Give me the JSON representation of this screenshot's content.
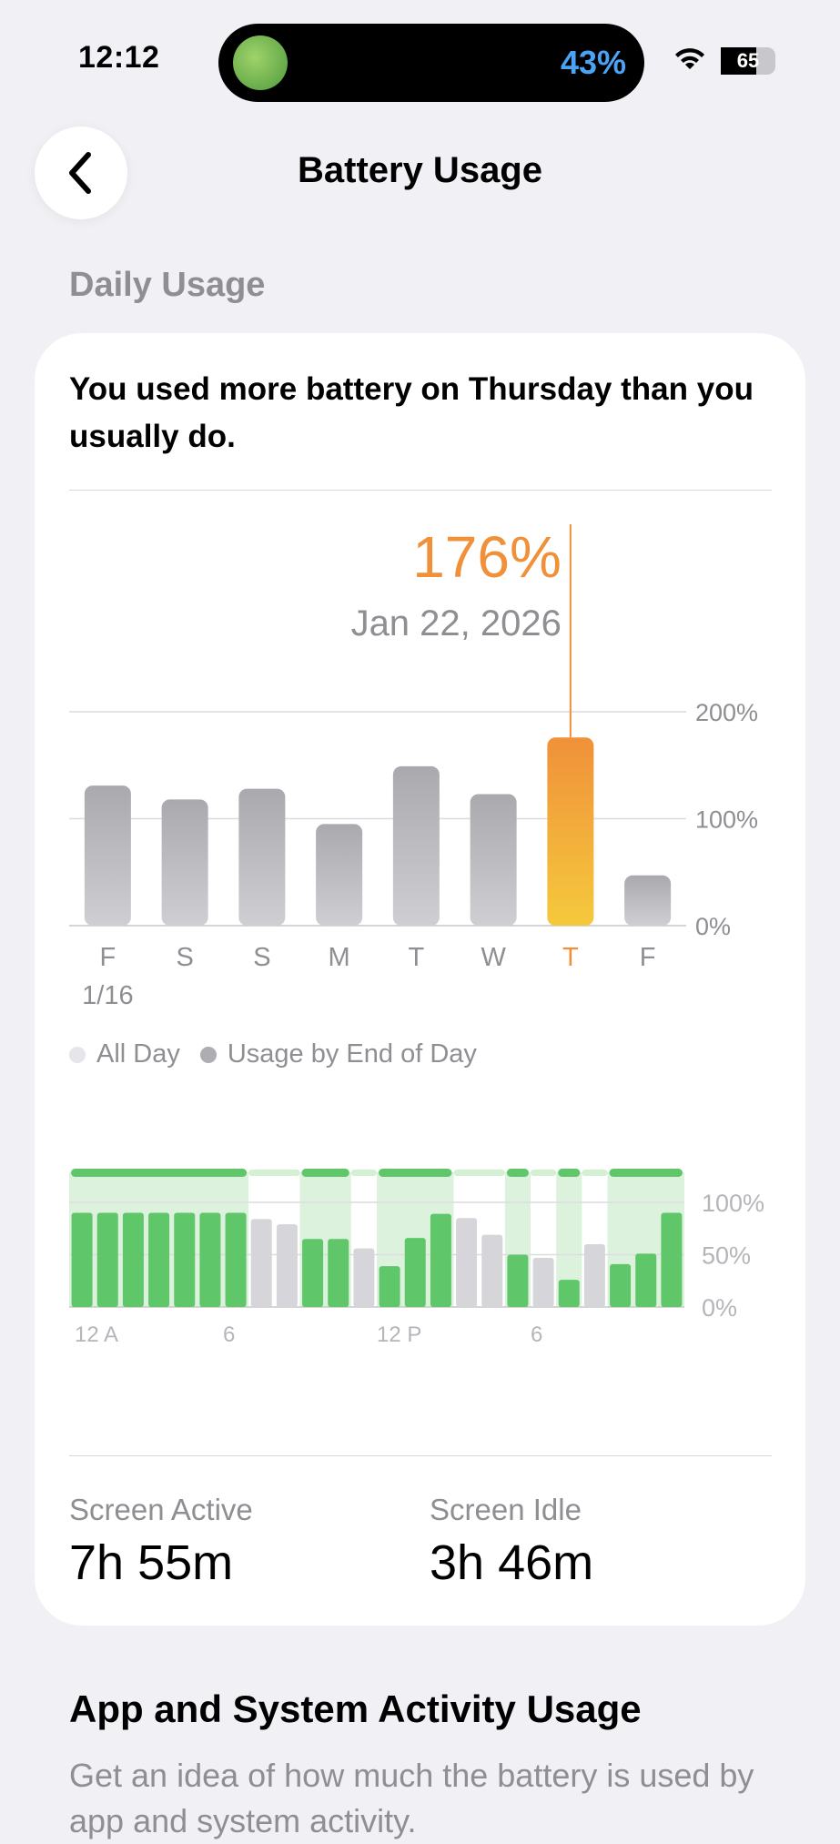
{
  "status": {
    "time": "12:12",
    "island_percent": "43%",
    "battery_level": "65"
  },
  "nav": {
    "title": "Battery Usage"
  },
  "daily": {
    "section_title": "Daily Usage",
    "headline": "You used more battery on Thursday than you usually do.",
    "selected_value": "176%",
    "selected_date": "Jan 22, 2026",
    "legend": {
      "all_day": "All Day",
      "end_of_day": "Usage by End of Day"
    }
  },
  "chart_data": [
    {
      "type": "bar",
      "categories": [
        "F",
        "S",
        "S",
        "M",
        "T",
        "W",
        "T",
        "F"
      ],
      "first_date_label": "1/16",
      "values": [
        131,
        118,
        128,
        95,
        149,
        123,
        176,
        47
      ],
      "highlight_index": 6,
      "yticks": [
        "0%",
        "100%",
        "200%"
      ],
      "ylim": [
        0,
        200
      ],
      "colors": {
        "bar": "#b3b3b8",
        "highlight_top": "#f0913a",
        "highlight_bottom": "#f5c93c"
      }
    },
    {
      "type": "bar",
      "xticks": [
        "12 A",
        "6",
        "12 P",
        "6"
      ],
      "yticks": [
        "0%",
        "50%",
        "100%"
      ],
      "ylim": [
        0,
        100
      ],
      "levels": [
        90,
        90,
        90,
        90,
        90,
        90,
        90,
        84,
        79,
        65,
        65,
        56,
        39,
        66,
        89,
        85,
        69,
        50,
        47,
        26,
        60,
        41,
        51,
        90
      ],
      "charging": [
        true,
        true,
        true,
        true,
        true,
        true,
        true,
        false,
        false,
        true,
        true,
        false,
        true,
        true,
        true,
        false,
        false,
        true,
        false,
        true,
        false,
        true,
        true,
        true
      ],
      "colors": {
        "charging": "#5fc66a",
        "discharging": "#d6d6da",
        "band": "rgba(120,205,120,0.25)"
      }
    }
  ],
  "stats": {
    "screen_active_label": "Screen Active",
    "screen_active_value": "7h 55m",
    "screen_idle_label": "Screen Idle",
    "screen_idle_value": "3h 46m"
  },
  "activity": {
    "title": "App and System Activity Usage",
    "description": "Get an idea of how much the battery is used by app and system activity."
  }
}
